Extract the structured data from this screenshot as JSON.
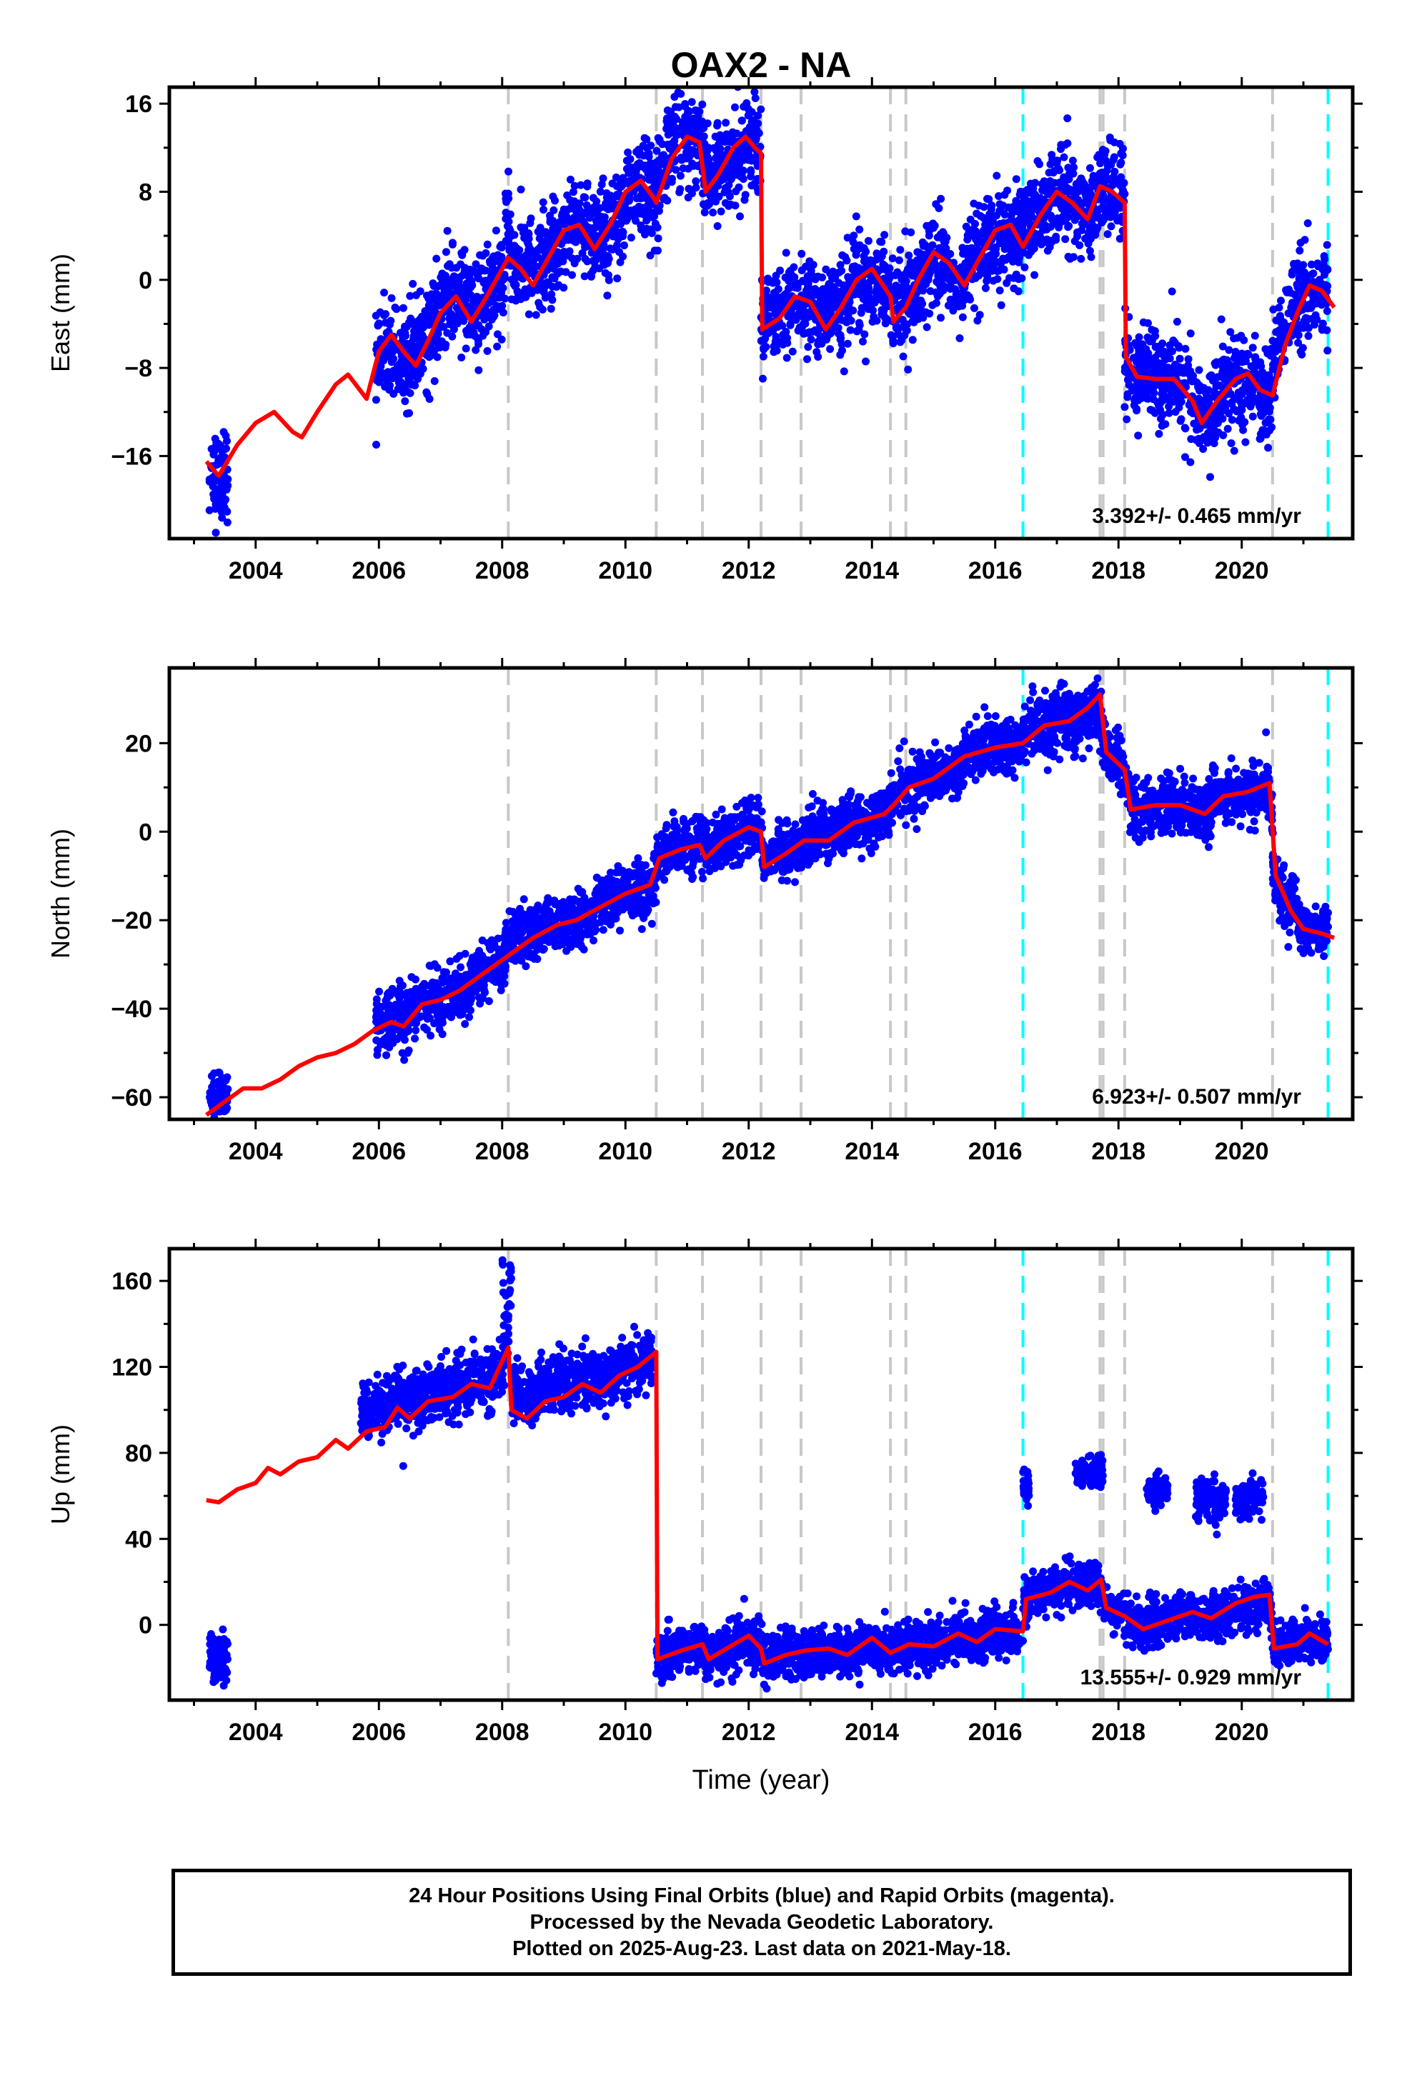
{
  "chart_data": [
    {
      "type": "scatter",
      "title": "OAX2 - NA",
      "ylabel": "East (mm)",
      "xlabel": "",
      "xlim": [
        2002.6,
        2021.8
      ],
      "ylim": [
        -23.5,
        17.5
      ],
      "xticks": [
        "2004",
        "2006",
        "2008",
        "2010",
        "2012",
        "2014",
        "2016",
        "2018",
        "2020"
      ],
      "yticks": [
        "16",
        "8",
        "0",
        "−8",
        "−16"
      ],
      "ytick_values": [
        16,
        8,
        0,
        -8,
        -16
      ],
      "rate_label": "3.392+/- 0.465 mm/yr",
      "offsets_gray": [
        2008.1,
        2010.5,
        2011.25,
        2012.2,
        2012.85,
        2014.3,
        2014.55,
        2017.7,
        2017.75,
        2018.1,
        2020.5
      ],
      "offsets_cyan": [
        2016.45,
        2021.4
      ],
      "model_line": [
        [
          2003.2,
          -16.5
        ],
        [
          2003.4,
          -17.8
        ],
        [
          2003.7,
          -15
        ],
        [
          2004,
          -13
        ],
        [
          2004.3,
          -12
        ],
        [
          2004.6,
          -13.8
        ],
        [
          2004.75,
          -14.3
        ],
        [
          2005,
          -12
        ],
        [
          2005.3,
          -9.5
        ],
        [
          2005.5,
          -8.6
        ],
        [
          2005.8,
          -10.8
        ],
        [
          2006,
          -6.5
        ],
        [
          2006.2,
          -5
        ],
        [
          2006.4,
          -6.5
        ],
        [
          2006.6,
          -7.8
        ],
        [
          2006.8,
          -5.5
        ],
        [
          2007,
          -3
        ],
        [
          2007.25,
          -1.5
        ],
        [
          2007.5,
          -3.8
        ],
        [
          2007.75,
          -1.5
        ],
        [
          2008,
          1
        ],
        [
          2008.1,
          2
        ],
        [
          2008.3,
          1
        ],
        [
          2008.5,
          -0.5
        ],
        [
          2008.75,
          2
        ],
        [
          2009,
          4.5
        ],
        [
          2009.25,
          5
        ],
        [
          2009.5,
          2.8
        ],
        [
          2009.75,
          5
        ],
        [
          2010,
          8
        ],
        [
          2010.25,
          9
        ],
        [
          2010.45,
          7.5
        ],
        [
          2010.5,
          7
        ],
        [
          2010.75,
          11
        ],
        [
          2011,
          13
        ],
        [
          2011.2,
          12.5
        ],
        [
          2011.3,
          8
        ],
        [
          2011.5,
          9.5
        ],
        [
          2011.75,
          12
        ],
        [
          2011.95,
          13
        ],
        [
          2012.1,
          12
        ],
        [
          2012.2,
          11.5
        ],
        [
          2012.22,
          -4.5
        ],
        [
          2012.5,
          -3.5
        ],
        [
          2012.75,
          -1.5
        ],
        [
          2013,
          -2
        ],
        [
          2013.25,
          -4.5
        ],
        [
          2013.5,
          -2.5
        ],
        [
          2013.75,
          0
        ],
        [
          2014,
          1
        ],
        [
          2014.3,
          -1.5
        ],
        [
          2014.35,
          -3.8
        ],
        [
          2014.55,
          -2.5
        ],
        [
          2014.75,
          0
        ],
        [
          2015,
          2.5
        ],
        [
          2015.25,
          1.5
        ],
        [
          2015.5,
          -0.5
        ],
        [
          2015.75,
          2
        ],
        [
          2016,
          4.5
        ],
        [
          2016.25,
          5
        ],
        [
          2016.45,
          3
        ],
        [
          2016.75,
          6
        ],
        [
          2017,
          8
        ],
        [
          2017.25,
          7
        ],
        [
          2017.5,
          5.5
        ],
        [
          2017.7,
          8.5
        ],
        [
          2017.9,
          8
        ],
        [
          2018.1,
          7
        ],
        [
          2018.12,
          -7
        ],
        [
          2018.3,
          -8.8
        ],
        [
          2018.6,
          -9
        ],
        [
          2018.9,
          -9
        ],
        [
          2019.2,
          -11
        ],
        [
          2019.35,
          -13
        ],
        [
          2019.6,
          -11
        ],
        [
          2019.9,
          -9
        ],
        [
          2020.1,
          -8.5
        ],
        [
          2020.3,
          -10
        ],
        [
          2020.5,
          -10.5
        ],
        [
          2020.7,
          -6
        ],
        [
          2020.9,
          -3
        ],
        [
          2021.1,
          -0.5
        ],
        [
          2021.3,
          -1
        ],
        [
          2021.5,
          -2.5
        ]
      ],
      "point_bands": [
        [
          2003.25,
          2003.55,
          -18.5,
          3.5
        ],
        [
          2005.95,
          2006.55,
          -8,
          3.5
        ],
        [
          2006.55,
          2007.0,
          -4,
          3.5
        ],
        [
          2007.0,
          2008.05,
          -1.5,
          3.5
        ],
        [
          2008.05,
          2008.15,
          8.5,
          3.5
        ],
        [
          2008.15,
          2009.0,
          2.5,
          3.5
        ],
        [
          2009.0,
          2010.0,
          4.5,
          3.5
        ],
        [
          2010.0,
          2010.5,
          7.5,
          3.5
        ],
        [
          2010.5,
          2011.25,
          13,
          3.5
        ],
        [
          2011.25,
          2012.2,
          11,
          3.5
        ],
        [
          2012.2,
          2013.0,
          -3,
          3.5
        ],
        [
          2013.0,
          2014.3,
          -2,
          3.5
        ],
        [
          2014.3,
          2015.5,
          0.5,
          3.5
        ],
        [
          2015.5,
          2016.4,
          3,
          3.5
        ],
        [
          2016.4,
          2017.7,
          7,
          3.5
        ],
        [
          2017.7,
          2018.1,
          8,
          3.5
        ],
        [
          2018.1,
          2019.3,
          -9,
          3.5
        ],
        [
          2019.3,
          2020.5,
          -10.5,
          3.5
        ],
        [
          2020.5,
          2021.4,
          -1.5,
          3.5
        ]
      ]
    },
    {
      "type": "scatter",
      "title": "",
      "ylabel": "North (mm)",
      "xlabel": "",
      "xlim": [
        2002.6,
        2021.8
      ],
      "ylim": [
        -65,
        37
      ],
      "xticks": [
        "2004",
        "2006",
        "2008",
        "2010",
        "2012",
        "2014",
        "2016",
        "2018",
        "2020"
      ],
      "yticks": [
        "20",
        "0",
        "−20",
        "−40",
        "−60"
      ],
      "ytick_values": [
        20,
        0,
        -20,
        -40,
        -60
      ],
      "rate_label": "6.923+/- 0.507 mm/yr",
      "offsets_gray": [
        2008.1,
        2010.5,
        2011.25,
        2012.2,
        2012.85,
        2014.3,
        2014.55,
        2017.7,
        2017.75,
        2018.1,
        2020.5
      ],
      "offsets_cyan": [
        2016.45,
        2021.4
      ],
      "model_line": [
        [
          2003.2,
          -64
        ],
        [
          2003.5,
          -61
        ],
        [
          2003.8,
          -58
        ],
        [
          2004.1,
          -58
        ],
        [
          2004.4,
          -56
        ],
        [
          2004.7,
          -53
        ],
        [
          2005,
          -51
        ],
        [
          2005.3,
          -50
        ],
        [
          2005.6,
          -48
        ],
        [
          2005.9,
          -45
        ],
        [
          2006.2,
          -43
        ],
        [
          2006.4,
          -44
        ],
        [
          2006.7,
          -39
        ],
        [
          2007,
          -38
        ],
        [
          2007.3,
          -36
        ],
        [
          2007.6,
          -33
        ],
        [
          2007.9,
          -30
        ],
        [
          2008.1,
          -28
        ],
        [
          2008.5,
          -24
        ],
        [
          2008.9,
          -21
        ],
        [
          2009.2,
          -20
        ],
        [
          2009.6,
          -17
        ],
        [
          2010,
          -14
        ],
        [
          2010.4,
          -12
        ],
        [
          2010.55,
          -6
        ],
        [
          2010.9,
          -4
        ],
        [
          2011.2,
          -3
        ],
        [
          2011.3,
          -6
        ],
        [
          2011.6,
          -2
        ],
        [
          2012,
          1
        ],
        [
          2012.2,
          0
        ],
        [
          2012.25,
          -8
        ],
        [
          2012.6,
          -5
        ],
        [
          2012.9,
          -2
        ],
        [
          2013.3,
          -2
        ],
        [
          2013.7,
          2
        ],
        [
          2014.2,
          4
        ],
        [
          2014.35,
          6
        ],
        [
          2014.6,
          10
        ],
        [
          2015,
          12
        ],
        [
          2015.5,
          17
        ],
        [
          2016,
          19
        ],
        [
          2016.45,
          20
        ],
        [
          2016.8,
          24
        ],
        [
          2017.2,
          25
        ],
        [
          2017.5,
          28
        ],
        [
          2017.7,
          31
        ],
        [
          2017.8,
          18
        ],
        [
          2018.1,
          14
        ],
        [
          2018.2,
          5
        ],
        [
          2018.6,
          6
        ],
        [
          2019,
          6
        ],
        [
          2019.4,
          4
        ],
        [
          2019.7,
          8
        ],
        [
          2020.1,
          9
        ],
        [
          2020.45,
          11
        ],
        [
          2020.55,
          -10
        ],
        [
          2020.8,
          -18
        ],
        [
          2021,
          -22
        ],
        [
          2021.3,
          -23
        ],
        [
          2021.5,
          -24
        ]
      ],
      "point_bands": [
        [
          2003.25,
          2003.55,
          -58,
          5
        ],
        [
          2005.95,
          2006.5,
          -42,
          6
        ],
        [
          2006.5,
          2007.5,
          -37,
          5
        ],
        [
          2007.5,
          2008.05,
          -30,
          5
        ],
        [
          2008.05,
          2008.15,
          -18,
          4
        ],
        [
          2008.15,
          2009.5,
          -21,
          5
        ],
        [
          2009.5,
          2010.5,
          -14,
          5
        ],
        [
          2010.5,
          2011.25,
          -3,
          5
        ],
        [
          2011.25,
          2012.2,
          0,
          5
        ],
        [
          2012.2,
          2013.0,
          -3,
          5
        ],
        [
          2013.0,
          2014.3,
          2,
          5
        ],
        [
          2014.3,
          2015.5,
          11,
          5
        ],
        [
          2015.5,
          2016.45,
          19,
          5
        ],
        [
          2016.45,
          2017.7,
          25,
          6
        ],
        [
          2017.7,
          2018.1,
          16,
          5
        ],
        [
          2018.1,
          2019.5,
          5,
          5
        ],
        [
          2019.5,
          2020.5,
          8,
          5
        ],
        [
          2020.5,
          2020.9,
          -15,
          6
        ],
        [
          2020.9,
          2021.4,
          -22,
          4
        ]
      ]
    },
    {
      "type": "scatter",
      "title": "",
      "ylabel": "Up (mm)",
      "xlabel": "Time (year)",
      "xlim": [
        2002.6,
        2021.8
      ],
      "ylim": [
        -35,
        175
      ],
      "xticks": [
        "2004",
        "2006",
        "2008",
        "2010",
        "2012",
        "2014",
        "2016",
        "2018",
        "2020"
      ],
      "yticks": [
        "160",
        "120",
        "80",
        "40",
        "0"
      ],
      "ytick_values": [
        160,
        120,
        80,
        40,
        0
      ],
      "rate_label": "13.555+/- 0.929 mm/yr",
      "offsets_gray": [
        2008.1,
        2010.5,
        2011.25,
        2012.2,
        2012.85,
        2014.3,
        2014.55,
        2017.7,
        2017.75,
        2018.1,
        2020.5
      ],
      "offsets_cyan": [
        2016.45,
        2021.4
      ],
      "model_line": [
        [
          2003.2,
          58
        ],
        [
          2003.4,
          57
        ],
        [
          2003.7,
          63
        ],
        [
          2004,
          66
        ],
        [
          2004.2,
          73
        ],
        [
          2004.4,
          70
        ],
        [
          2004.7,
          76
        ],
        [
          2005,
          78
        ],
        [
          2005.3,
          86
        ],
        [
          2005.5,
          82
        ],
        [
          2005.8,
          90
        ],
        [
          2006.1,
          92
        ],
        [
          2006.3,
          101
        ],
        [
          2006.5,
          96
        ],
        [
          2006.8,
          104
        ],
        [
          2007.2,
          106
        ],
        [
          2007.5,
          112
        ],
        [
          2007.8,
          110
        ],
        [
          2008.1,
          129
        ],
        [
          2008.15,
          100
        ],
        [
          2008.4,
          96
        ],
        [
          2008.7,
          104
        ],
        [
          2009,
          106
        ],
        [
          2009.3,
          112
        ],
        [
          2009.6,
          108
        ],
        [
          2009.9,
          116
        ],
        [
          2010.2,
          120
        ],
        [
          2010.5,
          127
        ],
        [
          2010.52,
          -16
        ],
        [
          2010.9,
          -12
        ],
        [
          2011.25,
          -9
        ],
        [
          2011.35,
          -16
        ],
        [
          2011.7,
          -10
        ],
        [
          2012,
          -5
        ],
        [
          2012.2,
          -11
        ],
        [
          2012.25,
          -18
        ],
        [
          2012.6,
          -14
        ],
        [
          2012.9,
          -12
        ],
        [
          2013.3,
          -11
        ],
        [
          2013.6,
          -14
        ],
        [
          2014,
          -6
        ],
        [
          2014.3,
          -13
        ],
        [
          2014.6,
          -9
        ],
        [
          2015,
          -10
        ],
        [
          2015.4,
          -4
        ],
        [
          2015.7,
          -8
        ],
        [
          2016,
          -2
        ],
        [
          2016.45,
          -3
        ],
        [
          2016.5,
          12
        ],
        [
          2016.9,
          15
        ],
        [
          2017.2,
          20
        ],
        [
          2017.5,
          16
        ],
        [
          2017.72,
          21
        ],
        [
          2017.8,
          8
        ],
        [
          2018.1,
          4
        ],
        [
          2018.4,
          -2
        ],
        [
          2018.8,
          2
        ],
        [
          2019.2,
          6
        ],
        [
          2019.5,
          3
        ],
        [
          2019.9,
          10
        ],
        [
          2020.2,
          13
        ],
        [
          2020.45,
          14
        ],
        [
          2020.52,
          -11
        ],
        [
          2020.9,
          -9
        ],
        [
          2021.1,
          -4
        ],
        [
          2021.4,
          -9
        ]
      ],
      "point_bands": [
        [
          2003.25,
          2003.55,
          -16,
          9
        ],
        [
          2005.7,
          2008.05,
          116,
          11
        ],
        [
          2008.0,
          2008.15,
          160,
          12
        ],
        [
          2008.15,
          2010.45,
          121,
          11
        ],
        [
          2010.5,
          2012.2,
          -12,
          9
        ],
        [
          2012.2,
          2014.3,
          -13,
          9
        ],
        [
          2014.3,
          2016.4,
          -7,
          9
        ],
        [
          2016.45,
          2017.7,
          16,
          8
        ],
        [
          2017.7,
          2018.1,
          7,
          7
        ],
        [
          2018.1,
          2020.5,
          3,
          9
        ],
        [
          2020.5,
          2021.4,
          -8,
          8
        ],
        [
          2016.45,
          2016.55,
          64,
          8
        ],
        [
          2017.3,
          2017.75,
          70,
          6
        ],
        [
          2018.45,
          2018.8,
          62,
          5
        ],
        [
          2019.25,
          2019.75,
          58,
          8
        ],
        [
          2019.9,
          2020.35,
          60,
          7
        ]
      ]
    }
  ],
  "footer": {
    "line1": "24 Hour Positions Using Final Orbits (blue) and Rapid Orbits (magenta).",
    "line2": "Processed by the Nevada Geodetic Laboratory.",
    "line3": "Plotted on 2025-Aug-23. Last data on 2021-May-18."
  },
  "colors": {
    "points": "#0000ff",
    "model": "#ff0000",
    "offset_gray": "#c8c8c8",
    "offset_cyan": "#00ffff",
    "frame": "#000000"
  }
}
